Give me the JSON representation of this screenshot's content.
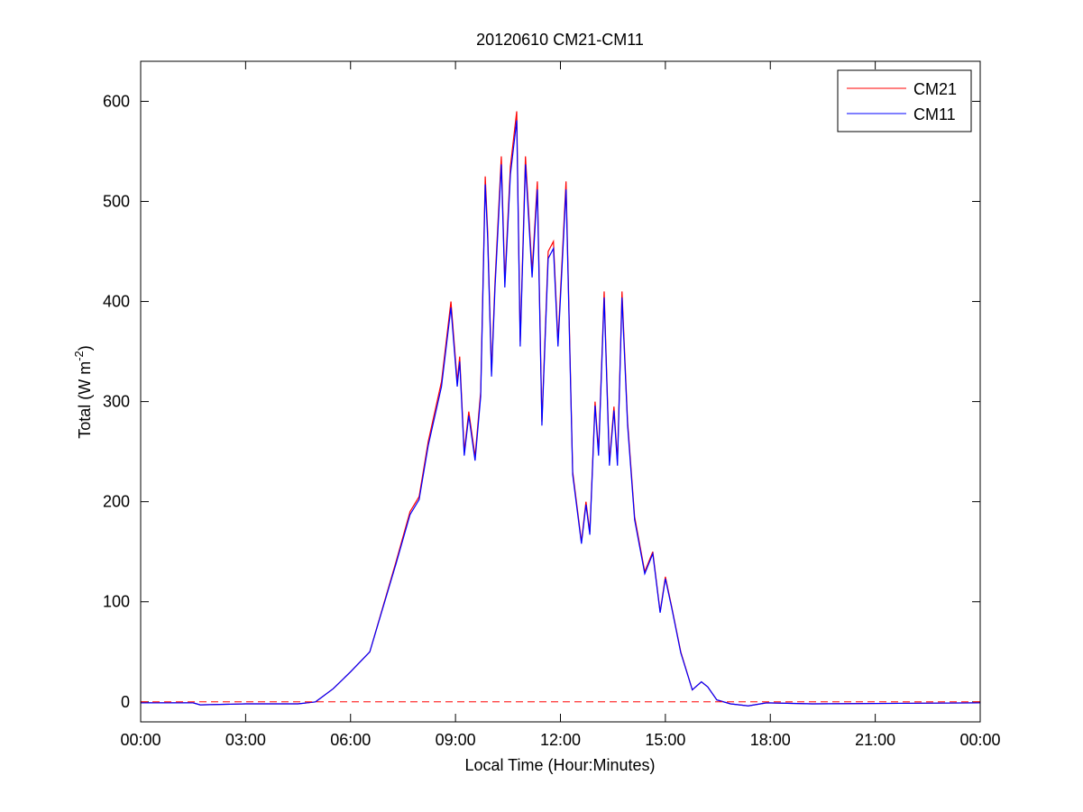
{
  "chart_data": {
    "type": "line",
    "title": "20120610 CM21-CM11",
    "x_label": "Local Time (Hour:Minutes)",
    "y_label": [
      "Total (W m",
      "-2",
      ")"
    ],
    "x": [
      0,
      1.5,
      1.7,
      3,
      4.5,
      5,
      5.5,
      6,
      6.55,
      7.3,
      7.7,
      7.96,
      8.22,
      8.6,
      8.87,
      9.05,
      9.12,
      9.25,
      9.38,
      9.56,
      9.72,
      9.85,
      9.92,
      10.03,
      10.13,
      10.31,
      10.41,
      10.57,
      10.75,
      10.85,
      11.0,
      11.19,
      11.34,
      11.47,
      11.65,
      11.8,
      11.93,
      12.16,
      12.35,
      12.6,
      12.73,
      12.84,
      12.99,
      13.09,
      13.25,
      13.4,
      13.53,
      13.63,
      13.76,
      13.92,
      14.12,
      14.41,
      14.64,
      14.85,
      15.0,
      15.18,
      15.44,
      15.77,
      16.03,
      16.21,
      16.47,
      16.86,
      17.37,
      17.89,
      19.2,
      24
    ],
    "series": [
      {
        "name": "CM21",
        "color": "#ff0000",
        "values": [
          -1,
          -1,
          -3,
          -2,
          -2,
          0,
          13,
          30,
          50,
          140,
          190,
          205,
          260,
          320,
          400,
          320,
          345,
          250,
          290,
          245,
          310,
          525,
          470,
          330,
          420,
          545,
          420,
          535,
          590,
          360,
          545,
          430,
          520,
          280,
          450,
          460,
          360,
          520,
          230,
          160,
          200,
          170,
          300,
          250,
          410,
          240,
          295,
          240,
          410,
          280,
          185,
          130,
          150,
          90,
          125,
          95,
          50,
          12,
          20,
          15,
          2,
          -2,
          -4,
          -1,
          -2,
          -1
        ]
      },
      {
        "name": "CM11",
        "color": "#0000ff",
        "values": [
          -1,
          -1,
          -3,
          -2,
          -2,
          0,
          13,
          30,
          50,
          138,
          187,
          202,
          256,
          315,
          394,
          315,
          340,
          246,
          286,
          241,
          305,
          517,
          463,
          325,
          414,
          537,
          414,
          527,
          581,
          355,
          537,
          424,
          512,
          276,
          443,
          453,
          355,
          512,
          227,
          158,
          197,
          167,
          296,
          246,
          404,
          236,
          291,
          236,
          404,
          276,
          182,
          128,
          148,
          89,
          123,
          94,
          49,
          12,
          20,
          15,
          2,
          -2,
          -4,
          -1,
          -2,
          -1
        ]
      }
    ],
    "xlim": [
      0,
      24
    ],
    "xticks": [
      {
        "value": 0,
        "label": "00:00"
      },
      {
        "value": 3,
        "label": "03:00"
      },
      {
        "value": 6,
        "label": "06:00"
      },
      {
        "value": 9,
        "label": "09:00"
      },
      {
        "value": 12,
        "label": "12:00"
      },
      {
        "value": 15,
        "label": "15:00"
      },
      {
        "value": 18,
        "label": "18:00"
      },
      {
        "value": 21,
        "label": "21:00"
      },
      {
        "value": 24,
        "label": "00:00"
      }
    ],
    "ylim": [
      -20,
      640
    ],
    "yticks": [
      0,
      100,
      200,
      300,
      400,
      500,
      600
    ],
    "reference_line": {
      "value": 0,
      "color": "#ff0000"
    },
    "legend": "top-right"
  }
}
